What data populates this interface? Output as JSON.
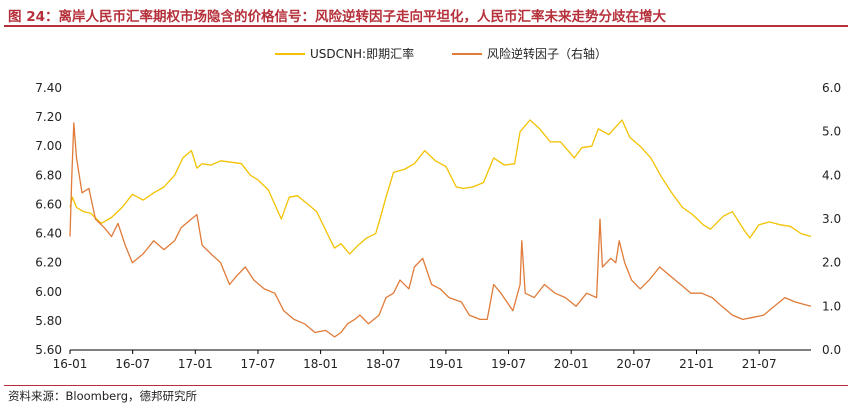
{
  "header": {
    "title": "图 24：离岸人民币汇率期权市场隐含的价格信号：风险逆转因子走向平坦化，人民币汇率未来走势分歧在增大"
  },
  "footer": {
    "source": "资料来源：Bloomberg，德邦研究所"
  },
  "colors": {
    "title": "#b5303a",
    "usdcnh": "#f2c200",
    "risk_reversal": "#e07b39"
  },
  "chart_data": {
    "type": "line",
    "x_ticks": [
      "16-01",
      "16-07",
      "17-01",
      "17-07",
      "18-01",
      "18-07",
      "19-01",
      "19-07",
      "20-01",
      "20-07",
      "21-01",
      "21-07"
    ],
    "x_range": [
      "2016-01-01",
      "2021-11-30"
    ],
    "y_left": {
      "ticks": [
        "5.60",
        "5.80",
        "6.00",
        "6.20",
        "6.40",
        "6.60",
        "6.80",
        "7.00",
        "7.20",
        "7.40"
      ],
      "range": [
        5.6,
        7.4
      ]
    },
    "y_right": {
      "ticks": [
        "0.0",
        "1.0",
        "2.0",
        "3.0",
        "4.0",
        "5.0",
        "6.0"
      ],
      "range": [
        0,
        6
      ]
    },
    "grid": false,
    "legend": "top-center",
    "series": [
      {
        "name": "USDCNH:即期汇率",
        "axis": "left",
        "points": [
          [
            "2016-01-01",
            6.58
          ],
          [
            "2016-01-08",
            6.65
          ],
          [
            "2016-01-20",
            6.58
          ],
          [
            "2016-02-10",
            6.55
          ],
          [
            "2016-03-01",
            6.54
          ],
          [
            "2016-04-01",
            6.47
          ],
          [
            "2016-05-01",
            6.51
          ],
          [
            "2016-06-01",
            6.58
          ],
          [
            "2016-07-01",
            6.67
          ],
          [
            "2016-08-01",
            6.63
          ],
          [
            "2016-09-01",
            6.68
          ],
          [
            "2016-10-01",
            6.72
          ],
          [
            "2016-11-01",
            6.8
          ],
          [
            "2016-11-25",
            6.92
          ],
          [
            "2016-12-20",
            6.97
          ],
          [
            "2017-01-05",
            6.85
          ],
          [
            "2017-01-20",
            6.88
          ],
          [
            "2017-02-15",
            6.87
          ],
          [
            "2017-03-15",
            6.9
          ],
          [
            "2017-04-15",
            6.89
          ],
          [
            "2017-05-15",
            6.88
          ],
          [
            "2017-06-10",
            6.8
          ],
          [
            "2017-07-01",
            6.77
          ],
          [
            "2017-08-01",
            6.7
          ],
          [
            "2017-09-08",
            6.5
          ],
          [
            "2017-10-01",
            6.65
          ],
          [
            "2017-10-25",
            6.66
          ],
          [
            "2017-11-20",
            6.61
          ],
          [
            "2017-12-20",
            6.55
          ],
          [
            "2018-01-20",
            6.4
          ],
          [
            "2018-02-10",
            6.3
          ],
          [
            "2018-03-01",
            6.33
          ],
          [
            "2018-03-26",
            6.26
          ],
          [
            "2018-04-20",
            6.32
          ],
          [
            "2018-05-15",
            6.37
          ],
          [
            "2018-06-10",
            6.4
          ],
          [
            "2018-06-25",
            6.52
          ],
          [
            "2018-07-10",
            6.65
          ],
          [
            "2018-08-01",
            6.82
          ],
          [
            "2018-09-01",
            6.84
          ],
          [
            "2018-10-01",
            6.88
          ],
          [
            "2018-10-31",
            6.97
          ],
          [
            "2018-12-01",
            6.9
          ],
          [
            "2019-01-01",
            6.86
          ],
          [
            "2019-01-31",
            6.72
          ],
          [
            "2019-02-20",
            6.71
          ],
          [
            "2019-03-20",
            6.72
          ],
          [
            "2019-04-20",
            6.75
          ],
          [
            "2019-05-20",
            6.92
          ],
          [
            "2019-06-20",
            6.87
          ],
          [
            "2019-07-20",
            6.88
          ],
          [
            "2019-08-05",
            7.1
          ],
          [
            "2019-09-03",
            7.18
          ],
          [
            "2019-10-01",
            7.12
          ],
          [
            "2019-11-01",
            7.03
          ],
          [
            "2019-12-01",
            7.03
          ],
          [
            "2020-01-10",
            6.92
          ],
          [
            "2020-02-01",
            6.99
          ],
          [
            "2020-03-01",
            7.0
          ],
          [
            "2020-03-20",
            7.12
          ],
          [
            "2020-04-20",
            7.08
          ],
          [
            "2020-05-28",
            7.18
          ],
          [
            "2020-06-20",
            7.06
          ],
          [
            "2020-07-20",
            7.0
          ],
          [
            "2020-08-20",
            6.92
          ],
          [
            "2020-09-20",
            6.79
          ],
          [
            "2020-10-20",
            6.68
          ],
          [
            "2020-11-20",
            6.58
          ],
          [
            "2020-12-20",
            6.53
          ],
          [
            "2021-01-20",
            6.46
          ],
          [
            "2021-02-10",
            6.43
          ],
          [
            "2021-03-20",
            6.52
          ],
          [
            "2021-04-15",
            6.55
          ],
          [
            "2021-05-20",
            6.42
          ],
          [
            "2021-06-05",
            6.37
          ],
          [
            "2021-07-01",
            6.46
          ],
          [
            "2021-08-01",
            6.48
          ],
          [
            "2021-09-01",
            6.46
          ],
          [
            "2021-10-01",
            6.45
          ],
          [
            "2021-11-01",
            6.4
          ],
          [
            "2021-11-30",
            6.38
          ]
        ]
      },
      {
        "name": "风险逆转因子（右轴）",
        "axis": "right",
        "points": [
          [
            "2016-01-01",
            2.6
          ],
          [
            "2016-01-06",
            3.9
          ],
          [
            "2016-01-12",
            5.2
          ],
          [
            "2016-01-20",
            4.4
          ],
          [
            "2016-02-05",
            3.6
          ],
          [
            "2016-02-25",
            3.7
          ],
          [
            "2016-03-15",
            3.0
          ],
          [
            "2016-04-10",
            2.8
          ],
          [
            "2016-05-01",
            2.6
          ],
          [
            "2016-05-20",
            2.9
          ],
          [
            "2016-06-10",
            2.4
          ],
          [
            "2016-07-01",
            2.0
          ],
          [
            "2016-08-01",
            2.2
          ],
          [
            "2016-09-01",
            2.5
          ],
          [
            "2016-10-01",
            2.3
          ],
          [
            "2016-11-01",
            2.5
          ],
          [
            "2016-11-20",
            2.8
          ],
          [
            "2016-12-20",
            3.0
          ],
          [
            "2017-01-05",
            3.1
          ],
          [
            "2017-01-20",
            2.4
          ],
          [
            "2017-02-15",
            2.2
          ],
          [
            "2017-03-15",
            2.0
          ],
          [
            "2017-04-10",
            1.5
          ],
          [
            "2017-05-01",
            1.7
          ],
          [
            "2017-05-26",
            1.9
          ],
          [
            "2017-06-20",
            1.6
          ],
          [
            "2017-07-20",
            1.4
          ],
          [
            "2017-08-20",
            1.3
          ],
          [
            "2017-09-15",
            0.9
          ],
          [
            "2017-10-15",
            0.7
          ],
          [
            "2017-11-15",
            0.6
          ],
          [
            "2017-12-15",
            0.4
          ],
          [
            "2018-01-15",
            0.45
          ],
          [
            "2018-02-10",
            0.3
          ],
          [
            "2018-03-01",
            0.4
          ],
          [
            "2018-03-20",
            0.6
          ],
          [
            "2018-04-10",
            0.7
          ],
          [
            "2018-04-25",
            0.8
          ],
          [
            "2018-05-20",
            0.6
          ],
          [
            "2018-06-20",
            0.8
          ],
          [
            "2018-07-10",
            1.2
          ],
          [
            "2018-08-01",
            1.3
          ],
          [
            "2018-08-20",
            1.6
          ],
          [
            "2018-09-15",
            1.4
          ],
          [
            "2018-10-01",
            1.9
          ],
          [
            "2018-10-25",
            2.1
          ],
          [
            "2018-11-20",
            1.5
          ],
          [
            "2018-12-15",
            1.4
          ],
          [
            "2019-01-10",
            1.2
          ],
          [
            "2019-02-15",
            1.1
          ],
          [
            "2019-03-10",
            0.8
          ],
          [
            "2019-04-10",
            0.7
          ],
          [
            "2019-05-01",
            0.7
          ],
          [
            "2019-05-20",
            1.5
          ],
          [
            "2019-06-10",
            1.3
          ],
          [
            "2019-07-15",
            0.9
          ],
          [
            "2019-08-05",
            1.5
          ],
          [
            "2019-08-10",
            2.5
          ],
          [
            "2019-08-20",
            1.3
          ],
          [
            "2019-09-15",
            1.2
          ],
          [
            "2019-10-15",
            1.5
          ],
          [
            "2019-11-15",
            1.3
          ],
          [
            "2019-12-15",
            1.2
          ],
          [
            "2020-01-15",
            1.0
          ],
          [
            "2020-02-15",
            1.3
          ],
          [
            "2020-03-15",
            1.2
          ],
          [
            "2020-03-25",
            3.0
          ],
          [
            "2020-04-01",
            1.9
          ],
          [
            "2020-04-25",
            2.1
          ],
          [
            "2020-05-10",
            2.0
          ],
          [
            "2020-05-20",
            2.5
          ],
          [
            "2020-06-05",
            2.0
          ],
          [
            "2020-06-25",
            1.6
          ],
          [
            "2020-07-20",
            1.4
          ],
          [
            "2020-08-15",
            1.6
          ],
          [
            "2020-09-15",
            1.9
          ],
          [
            "2020-10-15",
            1.7
          ],
          [
            "2020-11-15",
            1.5
          ],
          [
            "2020-12-15",
            1.3
          ],
          [
            "2021-01-15",
            1.3
          ],
          [
            "2021-02-15",
            1.2
          ],
          [
            "2021-03-15",
            1.0
          ],
          [
            "2021-04-15",
            0.8
          ],
          [
            "2021-05-15",
            0.7
          ],
          [
            "2021-06-15",
            0.75
          ],
          [
            "2021-07-15",
            0.8
          ],
          [
            "2021-08-15",
            1.0
          ],
          [
            "2021-09-15",
            1.2
          ],
          [
            "2021-10-15",
            1.1
          ],
          [
            "2021-11-30",
            1.0
          ]
        ]
      }
    ]
  }
}
